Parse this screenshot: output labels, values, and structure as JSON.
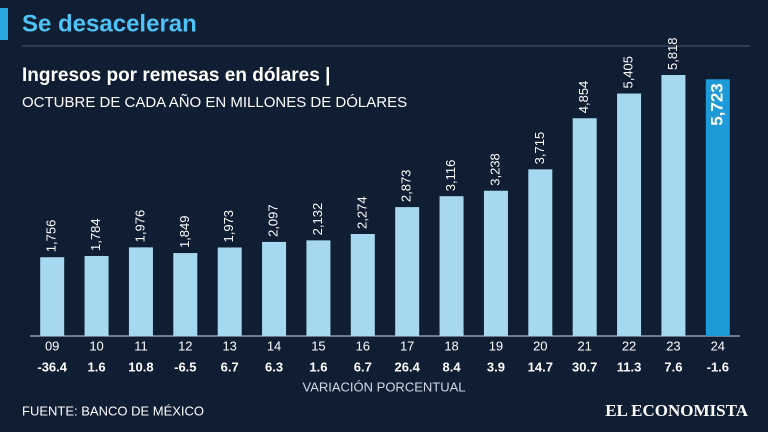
{
  "chart_data": {
    "type": "bar",
    "header": "Se desaceleran",
    "title": "Ingresos por remesas en dólares |",
    "subtitle": "OCTUBRE DE CADA AÑO EN MILLONES DE DÓLARES",
    "categories": [
      "09",
      "10",
      "11",
      "12",
      "13",
      "14",
      "15",
      "16",
      "17",
      "18",
      "19",
      "20",
      "21",
      "22",
      "23",
      "24"
    ],
    "values": [
      1756,
      1784,
      1976,
      1849,
      1973,
      2097,
      2132,
      2274,
      2873,
      3116,
      3238,
      3715,
      4854,
      5405,
      5818,
      5723
    ],
    "value_labels": [
      "1,756",
      "1,784",
      "1,976",
      "1,849",
      "1,973",
      "2,097",
      "2,132",
      "2,274",
      "2,873",
      "3,116",
      "3,238",
      "3,715",
      "4,854",
      "5,405",
      "5,818",
      "5,723"
    ],
    "colors": [
      "#a6d9f0",
      "#a6d9f0",
      "#a6d9f0",
      "#a6d9f0",
      "#a6d9f0",
      "#a6d9f0",
      "#a6d9f0",
      "#a6d9f0",
      "#a6d9f0",
      "#a6d9f0",
      "#a6d9f0",
      "#a6d9f0",
      "#a6d9f0",
      "#a6d9f0",
      "#a6d9f0",
      "#1e9ad8"
    ],
    "variation": [
      -36.4,
      1.6,
      10.8,
      -6.5,
      6.7,
      6.3,
      1.6,
      6.7,
      26.4,
      8.4,
      3.9,
      14.7,
      30.7,
      11.3,
      7.6,
      -1.6
    ],
    "variation_label": "VARIACIÓN PORCENTUAL",
    "source": "FUENTE: BANCO DE MÉXICO",
    "publisher": "EL ECONOMISTA"
  }
}
